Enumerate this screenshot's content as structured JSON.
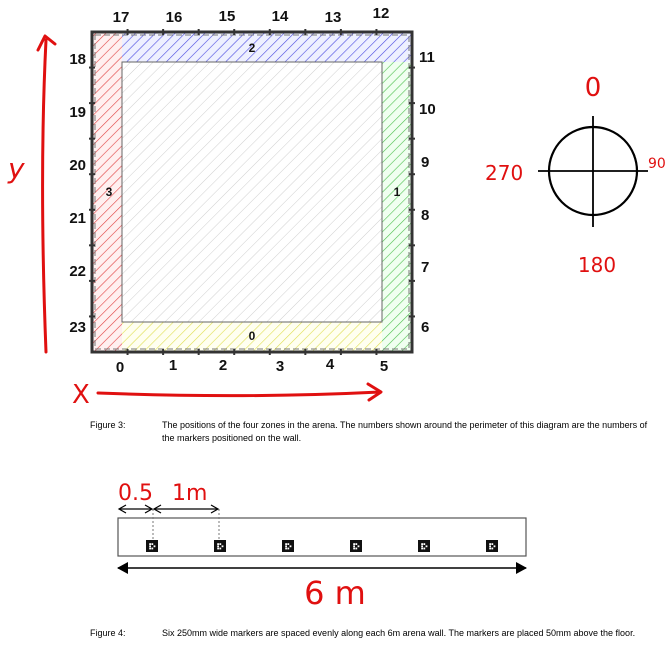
{
  "figure3": {
    "caption_label": "Figure 3:",
    "caption_text": "The positions of the four zones in the arena. The numbers shown around the perimeter of this diagram are the numbers of the markers positioned on the wall.",
    "top_markers": [
      "17",
      "16",
      "15",
      "14",
      "13",
      "12"
    ],
    "left_markers": [
      "18",
      "19",
      "20",
      "21",
      "22",
      "23"
    ],
    "right_markers": [
      "11",
      "10",
      "9",
      "8",
      "7",
      "6"
    ],
    "bottom_markers": [
      "0",
      "1",
      "2",
      "3",
      "4",
      "5"
    ],
    "zones": {
      "top": "2",
      "left": "3",
      "right": "1",
      "bottom": "0"
    },
    "zone_colors": {
      "top": "#6a6af0",
      "left": "#e05050",
      "right": "#5cc85c",
      "bottom": "#e8e860"
    },
    "axis_x": "X",
    "axis_y": "y",
    "compass": {
      "north": "0",
      "east": "90",
      "south": "180",
      "west": "270"
    },
    "annotation_color": "#e01010"
  },
  "figure4": {
    "caption_label": "Figure 4:",
    "caption_text": "Six 250mm wide markers are spaced evenly along each 6m arena wall. The markers are placed 50mm above the floor.",
    "dim_short": "0.5",
    "dim_long": "1m",
    "width_label": "6 m",
    "marker_count": 6
  }
}
